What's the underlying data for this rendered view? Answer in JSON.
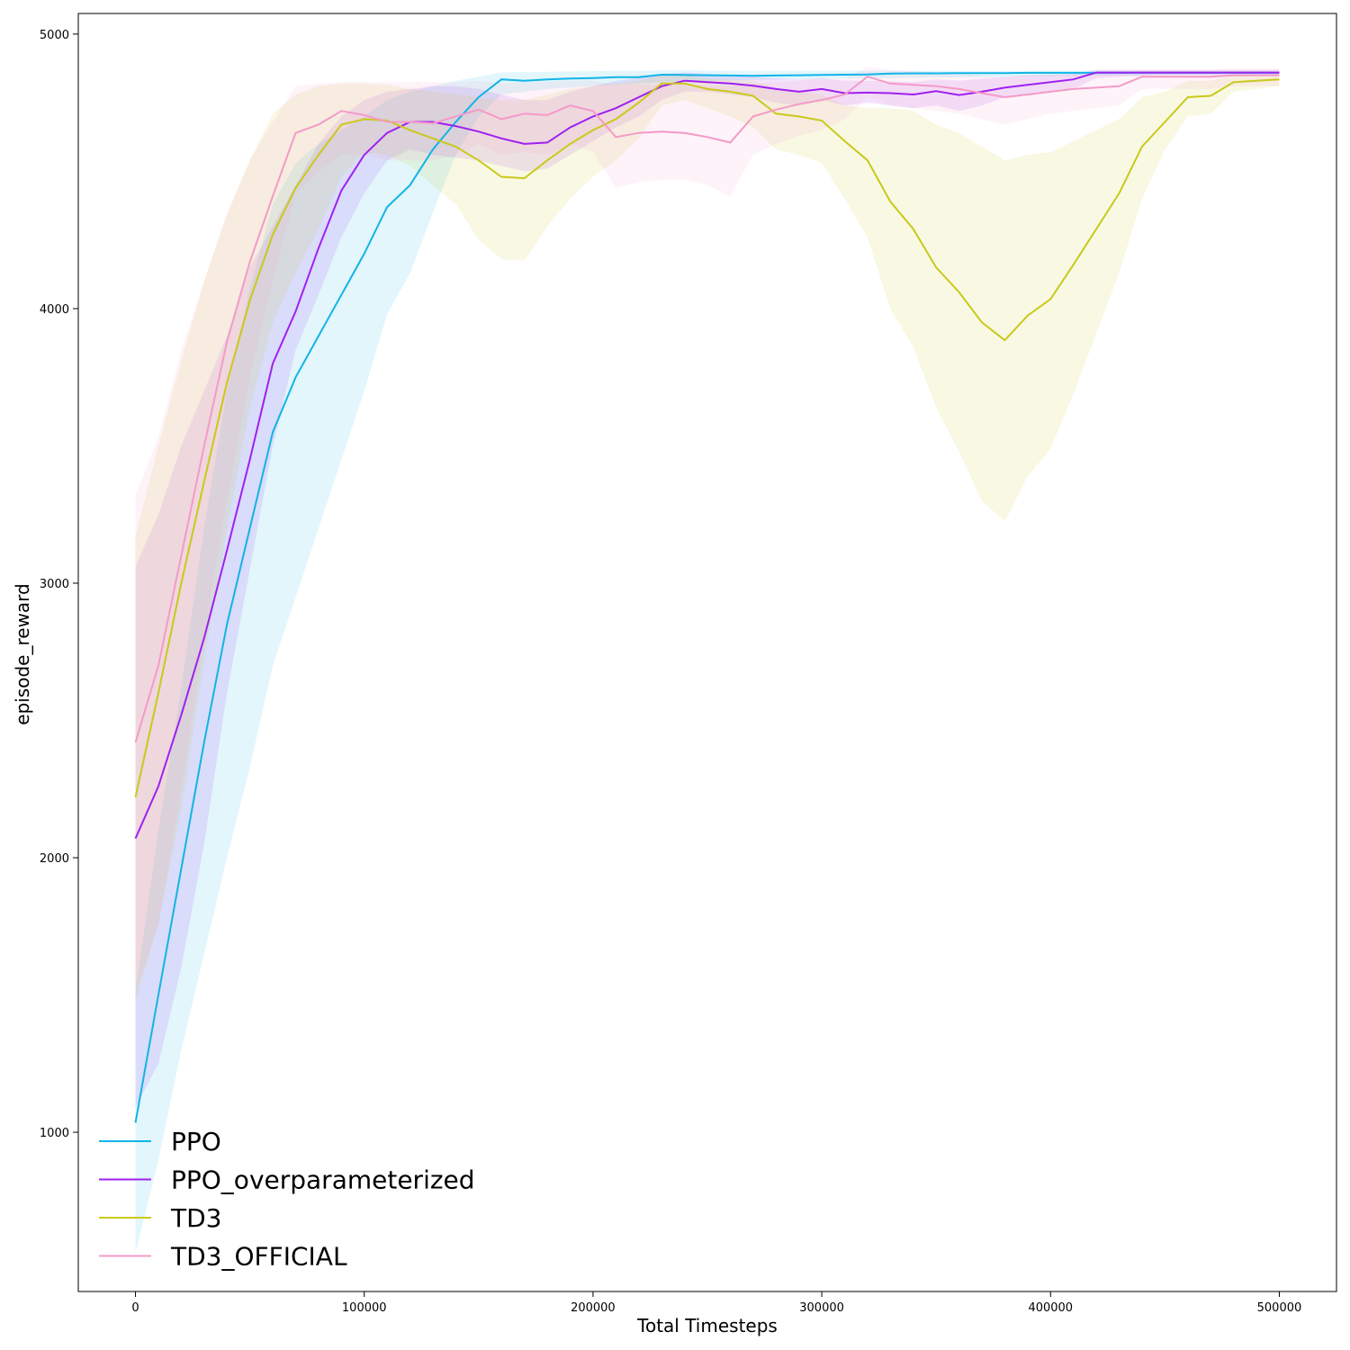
{
  "chart_data": {
    "type": "line",
    "title": "",
    "xlabel": "Total Timesteps",
    "ylabel": "episode_reward",
    "xlim": [
      -25000,
      525000
    ],
    "ylim": [
      420,
      5075
    ],
    "xticks": [
      0,
      100000,
      200000,
      300000,
      400000,
      500000
    ],
    "xtick_labels": [
      "0",
      "100000",
      "200000",
      "300000",
      "400000",
      "500000"
    ],
    "yticks": [
      1000,
      2000,
      3000,
      4000,
      5000
    ],
    "ytick_labels": [
      "1000",
      "2000",
      "3000",
      "4000",
      "5000"
    ],
    "grid": false,
    "legend_position": "bottom-left",
    "x": [
      0,
      10000,
      20000,
      30000,
      40000,
      50000,
      60000,
      70000,
      80000,
      90000,
      100000,
      110000,
      120000,
      130000,
      140000,
      150000,
      160000,
      170000,
      180000,
      190000,
      200000,
      210000,
      220000,
      230000,
      240000,
      250000,
      260000,
      270000,
      280000,
      290000,
      300000,
      310000,
      320000,
      330000,
      340000,
      350000,
      360000,
      370000,
      380000,
      390000,
      400000,
      410000,
      420000,
      430000,
      440000,
      450000,
      460000,
      470000,
      480000,
      490000,
      500000
    ],
    "series": [
      {
        "name": "PPO",
        "color": "#11b4e8",
        "values": [
          1035,
          1500,
          1960,
          2420,
          2850,
          3200,
          3550,
          3750,
          3900,
          4050,
          4200,
          4370,
          4450,
          4580,
          4680,
          4770,
          4835,
          4830,
          4835,
          4838,
          4840,
          4843,
          4843,
          4852,
          4851,
          4850,
          4849,
          4848,
          4849,
          4850,
          4851,
          4852,
          4853,
          4856,
          4857,
          4857,
          4858,
          4858,
          4858,
          4859,
          4859,
          4859,
          4859,
          4859,
          4859,
          4859,
          4859,
          4859,
          4859,
          4859,
          4859
        ],
        "lower": [
          560,
          900,
          1300,
          1650,
          2000,
          2330,
          2700,
          2950,
          3200,
          3450,
          3700,
          3980,
          4130,
          4350,
          4560,
          4700,
          4780,
          4790,
          4800,
          4805,
          4810,
          4815,
          4820,
          4825,
          4828,
          4830,
          4832,
          4833,
          4835,
          4836,
          4837,
          4838,
          4839,
          4840,
          4841,
          4842,
          4843,
          4844,
          4845,
          4846,
          4847,
          4848,
          4849,
          4850,
          4851,
          4852,
          4853,
          4853,
          4854,
          4854,
          4854
        ],
        "upper": [
          1510,
          2100,
          2620,
          3200,
          3700,
          4070,
          4380,
          4530,
          4600,
          4650,
          4700,
          4760,
          4790,
          4810,
          4830,
          4845,
          4860,
          4862,
          4863,
          4864,
          4865,
          4866,
          4866,
          4868,
          4868,
          4867,
          4866,
          4866,
          4866,
          4866,
          4866,
          4866,
          4866,
          4866,
          4866,
          4866,
          4866,
          4866,
          4866,
          4866,
          4866,
          4866,
          4866,
          4866,
          4866,
          4866,
          4866,
          4866,
          4866,
          4866,
          4866
        ]
      },
      {
        "name": "PPO_overparameterized",
        "color": "#a020f0",
        "values": [
          2070,
          2260,
          2520,
          2800,
          3120,
          3450,
          3800,
          3990,
          4220,
          4430,
          4560,
          4640,
          4680,
          4680,
          4665,
          4645,
          4620,
          4600,
          4605,
          4660,
          4700,
          4730,
          4770,
          4810,
          4830,
          4825,
          4820,
          4812,
          4800,
          4790,
          4800,
          4785,
          4787,
          4785,
          4780,
          4792,
          4778,
          4790,
          4805,
          4815,
          4825,
          4835,
          4860,
          4860,
          4860,
          4860,
          4860,
          4860,
          4860,
          4860,
          4860
        ],
        "lower": [
          1090,
          1250,
          1600,
          2050,
          2600,
          3050,
          3500,
          3850,
          4050,
          4260,
          4420,
          4540,
          4580,
          4560,
          4550,
          4540,
          4520,
          4500,
          4510,
          4560,
          4610,
          4660,
          4700,
          4760,
          4790,
          4790,
          4780,
          4770,
          4750,
          4740,
          4760,
          4740,
          4750,
          4740,
          4730,
          4740,
          4720,
          4740,
          4770,
          4780,
          4790,
          4800,
          4840,
          4845,
          4848,
          4850,
          4850,
          4850,
          4850,
          4850,
          4850
        ],
        "upper": [
          3060,
          3250,
          3500,
          3700,
          3900,
          4150,
          4300,
          4450,
          4600,
          4700,
          4760,
          4790,
          4800,
          4810,
          4810,
          4800,
          4780,
          4760,
          4760,
          4790,
          4810,
          4830,
          4840,
          4855,
          4860,
          4855,
          4850,
          4845,
          4840,
          4835,
          4840,
          4830,
          4830,
          4828,
          4825,
          4835,
          4830,
          4838,
          4845,
          4850,
          4852,
          4855,
          4870,
          4870,
          4870,
          4870,
          4870,
          4870,
          4870,
          4870,
          4870
        ]
      },
      {
        "name": "TD3",
        "color": "#c9c91a",
        "values": [
          2220,
          2600,
          3000,
          3370,
          3730,
          4030,
          4270,
          4440,
          4560,
          4670,
          4690,
          4685,
          4650,
          4620,
          4590,
          4540,
          4480,
          4475,
          4540,
          4600,
          4650,
          4690,
          4750,
          4820,
          4820,
          4800,
          4790,
          4775,
          4710,
          4700,
          4685,
          4610,
          4540,
          4390,
          4290,
          4150,
          4060,
          3950,
          3885,
          3975,
          4035,
          4160,
          4290,
          4420,
          4590,
          4680,
          4770,
          4775,
          4825,
          4830,
          4835
        ],
        "lower": [
          1480,
          1760,
          2180,
          2720,
          3200,
          3640,
          3950,
          4130,
          4290,
          4480,
          4570,
          4560,
          4520,
          4450,
          4380,
          4250,
          4180,
          4175,
          4300,
          4400,
          4480,
          4540,
          4620,
          4740,
          4760,
          4730,
          4700,
          4660,
          4580,
          4560,
          4530,
          4400,
          4260,
          4000,
          3860,
          3640,
          3480,
          3300,
          3225,
          3390,
          3490,
          3690,
          3910,
          4130,
          4400,
          4580,
          4700,
          4710,
          4790,
          4800,
          4810
        ],
        "upper": [
          3170,
          3500,
          3810,
          4100,
          4340,
          4540,
          4710,
          4780,
          4810,
          4820,
          4820,
          4815,
          4800,
          4790,
          4780,
          4770,
          4760,
          4760,
          4780,
          4800,
          4810,
          4820,
          4830,
          4850,
          4850,
          4840,
          4835,
          4830,
          4800,
          4790,
          4780,
          4740,
          4730,
          4730,
          4720,
          4670,
          4640,
          4590,
          4540,
          4560,
          4570,
          4610,
          4650,
          4690,
          4770,
          4790,
          4830,
          4830,
          4850,
          4850,
          4850
        ]
      },
      {
        "name": "TD3_OFFICIAL",
        "color": "#f49ac8",
        "values": [
          2420,
          2700,
          3100,
          3500,
          3880,
          4170,
          4410,
          4640,
          4670,
          4720,
          4705,
          4680,
          4680,
          4675,
          4700,
          4725,
          4690,
          4710,
          4705,
          4740,
          4720,
          4625,
          4640,
          4645,
          4640,
          4625,
          4605,
          4700,
          4725,
          4745,
          4760,
          4780,
          4845,
          4820,
          4815,
          4810,
          4800,
          4785,
          4770,
          4780,
          4790,
          4800,
          4805,
          4810,
          4845,
          4845,
          4845,
          4845,
          4850,
          4850,
          4850
        ],
        "lower": [
          1520,
          1750,
          2250,
          2800,
          3300,
          3750,
          4100,
          4420,
          4500,
          4560,
          4560,
          4540,
          4540,
          4540,
          4560,
          4600,
          4560,
          4570,
          4560,
          4600,
          4570,
          4440,
          4460,
          4470,
          4470,
          4450,
          4410,
          4560,
          4600,
          4630,
          4650,
          4690,
          4770,
          4740,
          4730,
          4720,
          4710,
          4690,
          4670,
          4690,
          4710,
          4720,
          4730,
          4740,
          4800,
          4800,
          4800,
          4800,
          4810,
          4810,
          4810
        ],
        "upper": [
          3320,
          3530,
          3850,
          4100,
          4350,
          4540,
          4680,
          4810,
          4820,
          4825,
          4825,
          4825,
          4825,
          4825,
          4825,
          4830,
          4820,
          4825,
          4825,
          4830,
          4830,
          4815,
          4815,
          4815,
          4815,
          4810,
          4810,
          4820,
          4825,
          4830,
          4835,
          4840,
          4880,
          4870,
          4865,
          4860,
          4855,
          4850,
          4845,
          4848,
          4850,
          4855,
          4858,
          4860,
          4870,
          4870,
          4870,
          4870,
          4875,
          4875,
          4875
        ]
      }
    ]
  }
}
